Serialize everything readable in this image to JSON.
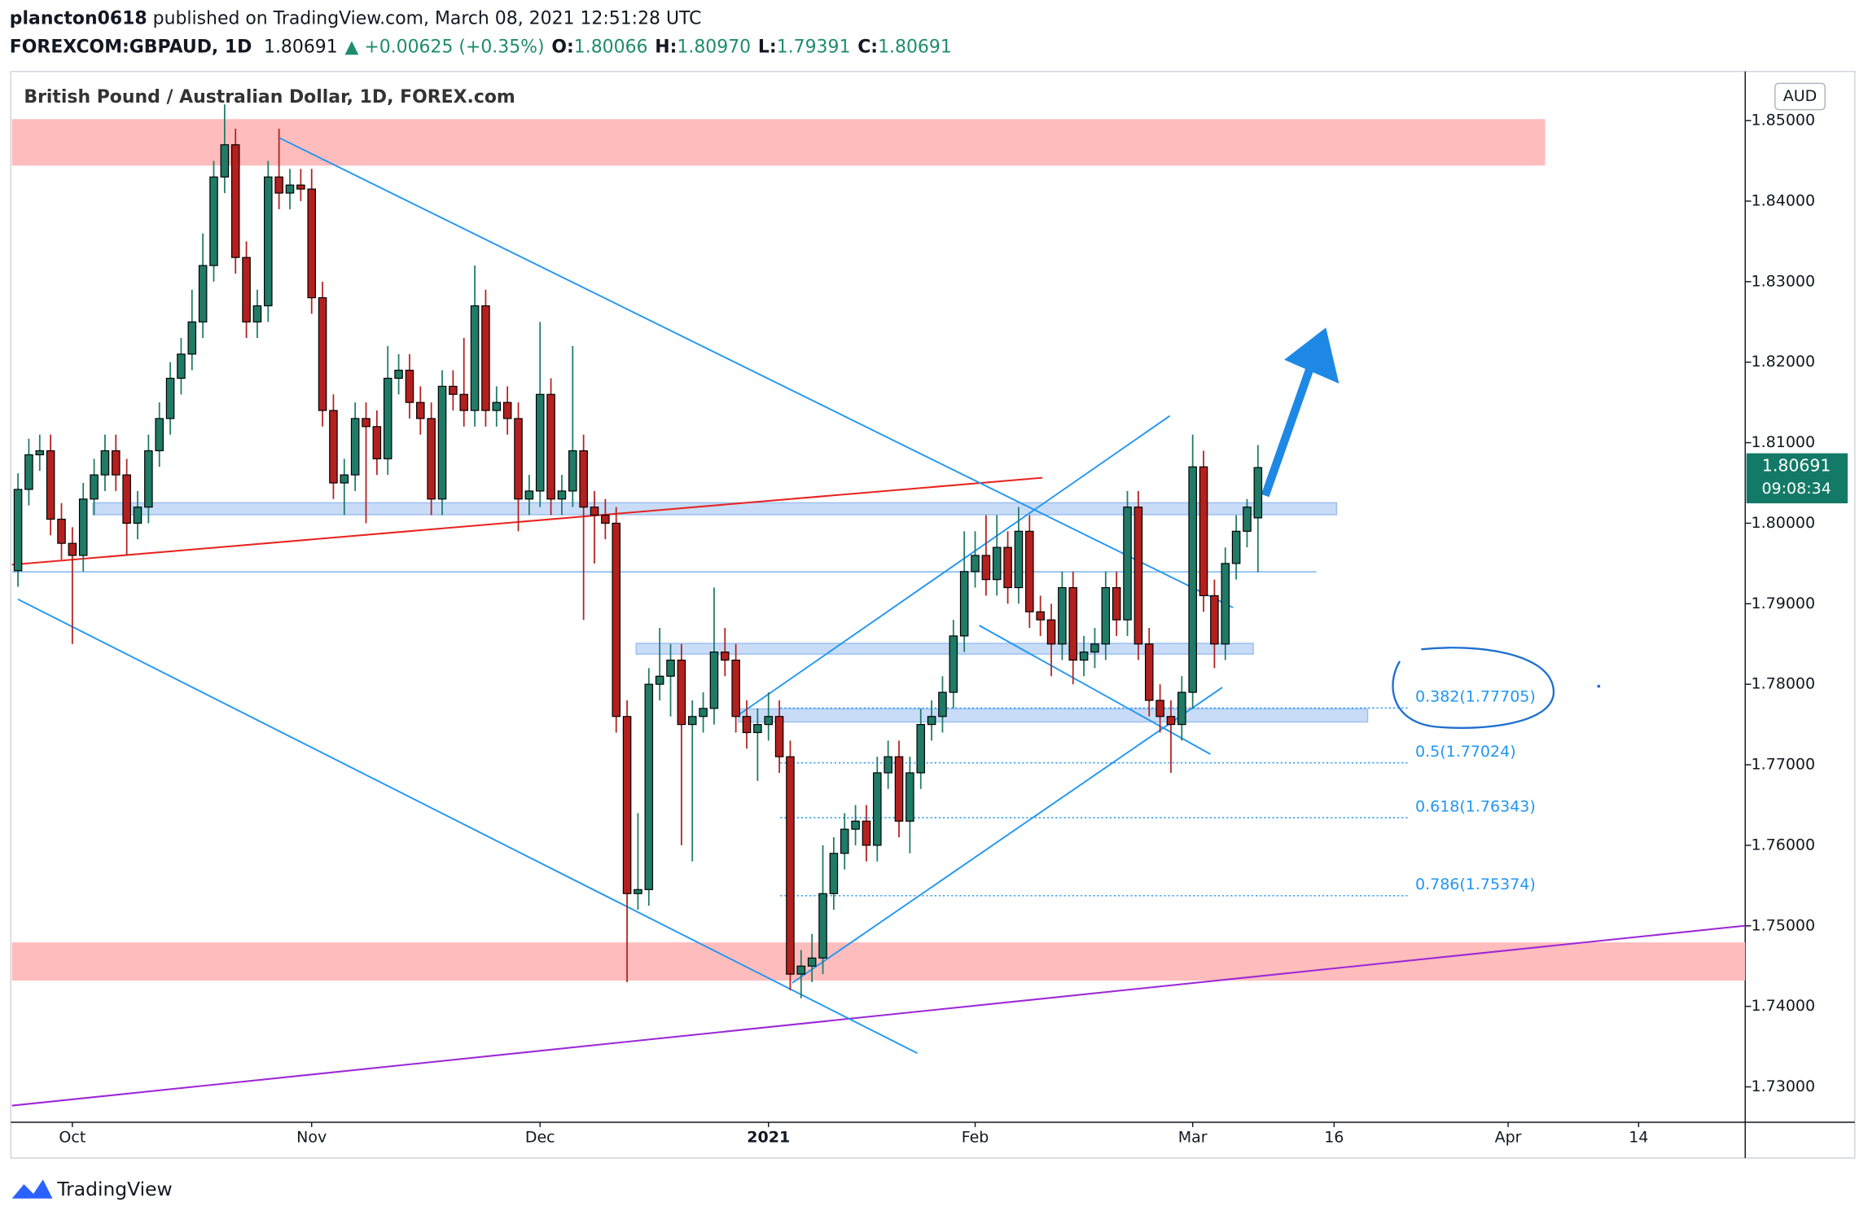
{
  "header": {
    "author": "plancton0618",
    "published": "published on TradingView.com, March 08, 2021 12:51:28 UTC",
    "symbol": "FOREXCOM:GBPAUD, 1D",
    "price": "1.80691",
    "change": "▲ +0.00625 (+0.35%)",
    "ohlc": [
      {
        "label": "O:",
        "value": "1.80066"
      },
      {
        "label": "H:",
        "value": "1.80970"
      },
      {
        "label": "L:",
        "value": "1.79391"
      },
      {
        "label": "C:",
        "value": "1.80691"
      }
    ]
  },
  "chart_data": {
    "type": "candlestick",
    "title": "British Pound / Australian Dollar, 1D, FOREX.com",
    "currency": "AUD",
    "up_color": "#1f7a66",
    "down_color": "#b3201e",
    "open": [
      1.7941,
      1.8042,
      1.8085,
      1.809,
      1.8005,
      1.7975,
      1.796,
      1.803,
      1.806,
      1.809,
      1.806,
      1.8,
      1.802,
      1.809,
      1.813,
      1.818,
      1.821,
      1.825,
      1.832,
      1.843,
      1.847,
      1.833,
      1.825,
      1.827,
      1.843,
      1.841,
      1.842,
      1.8415,
      1.828,
      1.814,
      1.805,
      1.806,
      1.813,
      1.812,
      1.808,
      1.818,
      1.819,
      1.815,
      1.813,
      1.803,
      1.817,
      1.816,
      1.814,
      1.827,
      1.814,
      1.815,
      1.813,
      1.803,
      1.804,
      1.816,
      1.803,
      1.804,
      1.809,
      1.802,
      1.801,
      1.8,
      1.776,
      1.754,
      1.7545,
      1.78,
      1.781,
      1.783,
      1.775,
      1.776,
      1.777,
      1.784,
      1.783,
      1.776,
      1.774,
      1.775,
      1.776,
      1.771,
      1.744,
      1.745,
      1.746,
      1.754,
      1.759,
      1.762,
      1.763,
      1.76,
      1.769,
      1.771,
      1.763,
      1.769,
      1.775,
      1.776,
      1.779,
      1.786,
      1.794,
      1.796,
      1.793,
      1.797,
      1.792,
      1.799,
      1.789,
      1.788,
      1.785,
      1.792,
      1.783,
      1.784,
      1.785,
      1.792,
      1.788,
      1.802,
      1.785,
      1.778,
      1.776,
      1.775,
      1.779,
      1.807,
      1.791,
      1.785,
      1.795,
      1.799,
      1.80066
    ],
    "high": [
      1.8062,
      1.8105,
      1.811,
      1.811,
      1.8025,
      1.7995,
      1.805,
      1.808,
      1.811,
      1.811,
      1.808,
      1.804,
      1.811,
      1.815,
      1.82,
      1.823,
      1.829,
      1.836,
      1.845,
      1.852,
      1.849,
      1.835,
      1.829,
      1.845,
      1.849,
      1.844,
      1.844,
      1.844,
      1.83,
      1.816,
      1.808,
      1.815,
      1.815,
      1.814,
      1.822,
      1.821,
      1.821,
      1.817,
      1.815,
      1.819,
      1.819,
      1.823,
      1.832,
      1.829,
      1.817,
      1.817,
      1.815,
      1.806,
      1.825,
      1.818,
      1.806,
      1.822,
      1.811,
      1.804,
      1.803,
      1.802,
      1.778,
      1.764,
      1.782,
      1.787,
      1.785,
      1.785,
      1.778,
      1.779,
      1.792,
      1.787,
      1.785,
      1.778,
      1.777,
      1.779,
      1.778,
      1.773,
      1.747,
      1.749,
      1.76,
      1.761,
      1.764,
      1.765,
      1.765,
      1.771,
      1.773,
      1.773,
      1.771,
      1.777,
      1.778,
      1.781,
      1.788,
      1.799,
      1.799,
      1.801,
      1.801,
      1.799,
      1.802,
      1.801,
      1.791,
      1.79,
      1.794,
      1.794,
      1.786,
      1.787,
      1.794,
      1.794,
      1.804,
      1.804,
      1.787,
      1.78,
      1.778,
      1.781,
      1.811,
      1.809,
      1.793,
      1.797,
      1.801,
      1.803,
      1.8097
    ],
    "low": [
      1.7921,
      1.8022,
      1.8065,
      1.7985,
      1.7955,
      1.785,
      1.794,
      1.801,
      1.804,
      1.804,
      1.796,
      1.798,
      1.8,
      1.807,
      1.811,
      1.816,
      1.819,
      1.823,
      1.83,
      1.841,
      1.831,
      1.823,
      1.823,
      1.825,
      1.839,
      1.839,
      1.84,
      1.826,
      1.812,
      1.803,
      1.801,
      1.804,
      1.8,
      1.806,
      1.806,
      1.816,
      1.813,
      1.811,
      1.801,
      1.801,
      1.814,
      1.812,
      1.812,
      1.812,
      1.812,
      1.811,
      1.799,
      1.801,
      1.802,
      1.801,
      1.801,
      1.802,
      1.788,
      1.795,
      1.798,
      1.774,
      1.743,
      1.752,
      1.7525,
      1.778,
      1.776,
      1.76,
      1.758,
      1.774,
      1.775,
      1.781,
      1.774,
      1.772,
      1.768,
      1.773,
      1.769,
      1.742,
      1.741,
      1.743,
      1.744,
      1.752,
      1.757,
      1.76,
      1.758,
      1.758,
      1.767,
      1.761,
      1.759,
      1.767,
      1.773,
      1.774,
      1.777,
      1.784,
      1.792,
      1.791,
      1.791,
      1.79,
      1.79,
      1.787,
      1.786,
      1.781,
      1.783,
      1.78,
      1.781,
      1.782,
      1.783,
      1.786,
      1.786,
      1.783,
      1.776,
      1.774,
      1.769,
      1.773,
      1.777,
      1.789,
      1.782,
      1.783,
      1.793,
      1.797,
      1.79391
    ],
    "close": [
      1.8042,
      1.8085,
      1.809,
      1.8005,
      1.7975,
      1.796,
      1.803,
      1.806,
      1.809,
      1.806,
      1.8,
      1.802,
      1.809,
      1.813,
      1.818,
      1.821,
      1.825,
      1.832,
      1.843,
      1.847,
      1.833,
      1.825,
      1.827,
      1.843,
      1.841,
      1.842,
      1.8415,
      1.828,
      1.814,
      1.805,
      1.806,
      1.813,
      1.812,
      1.808,
      1.818,
      1.819,
      1.815,
      1.813,
      1.803,
      1.817,
      1.816,
      1.814,
      1.827,
      1.814,
      1.815,
      1.813,
      1.803,
      1.804,
      1.816,
      1.803,
      1.804,
      1.809,
      1.802,
      1.801,
      1.8,
      1.776,
      1.754,
      1.7545,
      1.78,
      1.781,
      1.783,
      1.775,
      1.776,
      1.777,
      1.784,
      1.783,
      1.776,
      1.774,
      1.775,
      1.776,
      1.771,
      1.744,
      1.745,
      1.746,
      1.754,
      1.759,
      1.762,
      1.763,
      1.76,
      1.769,
      1.771,
      1.763,
      1.769,
      1.775,
      1.776,
      1.779,
      1.786,
      1.794,
      1.796,
      1.793,
      1.797,
      1.792,
      1.799,
      1.789,
      1.788,
      1.785,
      1.792,
      1.783,
      1.784,
      1.785,
      1.792,
      1.788,
      1.802,
      1.785,
      1.778,
      1.776,
      1.775,
      1.779,
      1.807,
      1.791,
      1.785,
      1.795,
      1.799,
      1.802,
      1.80691
    ],
    "xlim": [
      -0.55,
      158.8
    ],
    "xticks": [
      {
        "value": 5,
        "label": "Oct"
      },
      {
        "value": 27,
        "label": "Nov"
      },
      {
        "value": 48,
        "label": "Dec"
      },
      {
        "value": 69,
        "label": "2021"
      },
      {
        "value": 88,
        "label": "Feb"
      },
      {
        "value": 108,
        "label": "Mar"
      },
      {
        "value": 121,
        "label": "16"
      },
      {
        "value": 137,
        "label": "Apr"
      },
      {
        "value": 149,
        "label": "14"
      }
    ],
    "ylim": [
      1.7256,
      1.8561
    ],
    "yticks": [
      {
        "value": 1.73,
        "label": "1.73000"
      },
      {
        "value": 1.74,
        "label": "1.74000"
      },
      {
        "value": 1.75,
        "label": "1.75000"
      },
      {
        "value": 1.76,
        "label": "1.76000"
      },
      {
        "value": 1.77,
        "label": "1.77000"
      },
      {
        "value": 1.78,
        "label": "1.78000"
      },
      {
        "value": 1.79,
        "label": "1.79000"
      },
      {
        "value": 1.8,
        "label": "1.80000"
      },
      {
        "value": 1.81,
        "label": "1.81000"
      },
      {
        "value": 1.82,
        "label": "1.82000"
      },
      {
        "value": 1.83,
        "label": "1.83000"
      },
      {
        "value": 1.84,
        "label": "1.84000"
      },
      {
        "value": 1.85,
        "label": "1.85000"
      }
    ],
    "fib_levels": [
      {
        "label": "0.382(1.77705)",
        "value": 1.77705
      },
      {
        "label": "0.5(1.77024)",
        "value": 1.77024
      },
      {
        "label": "0.618(1.76343)",
        "value": 1.76343
      },
      {
        "label": "0.786(1.75374)",
        "value": 1.75374
      }
    ],
    "countdown": "09:08:34"
  },
  "footer": {
    "logo": "TradingView"
  }
}
